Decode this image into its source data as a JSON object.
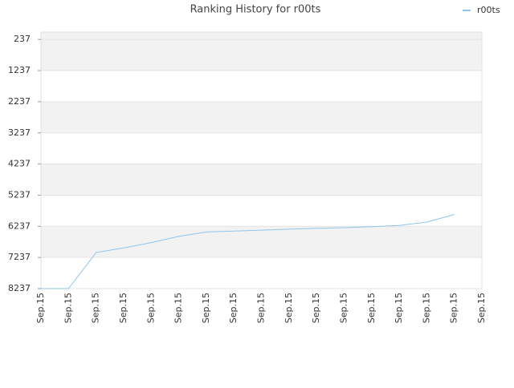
{
  "chart_data": {
    "type": "line",
    "title": "Ranking History for r00ts",
    "categories": [
      "Sep.15",
      "Sep.15",
      "Sep.15",
      "Sep.15",
      "Sep.15",
      "Sep.15",
      "Sep.15",
      "Sep.15",
      "Sep.15",
      "Sep.15",
      "Sep.15",
      "Sep.15",
      "Sep.15",
      "Sep.15",
      "Sep.15",
      "Sep.15",
      "Sep.15"
    ],
    "series": [
      {
        "name": "r00ts",
        "color": "#8ec6ec",
        "values": [
          8237,
          8237,
          7080,
          6930,
          6760,
          6560,
          6420,
          6390,
          6360,
          6330,
          6300,
          6280,
          6250,
          6210,
          6100,
          5860,
          null
        ]
      }
    ],
    "ylim": [
      8237,
      0
    ],
    "yticks": [
      237,
      1237,
      2237,
      3237,
      4237,
      5237,
      6237,
      7237,
      8237
    ],
    "grid": true,
    "legend": "top-right"
  }
}
